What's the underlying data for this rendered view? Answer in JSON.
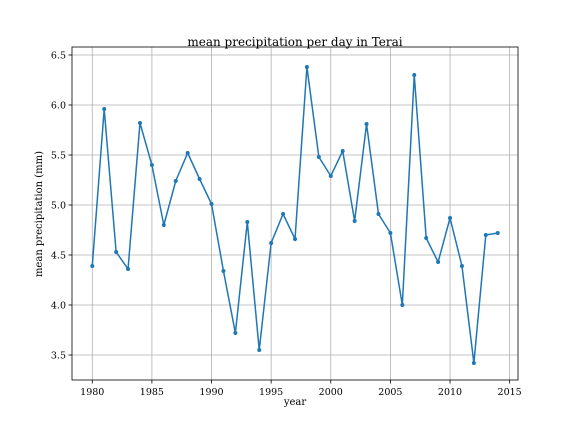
{
  "chart_data": {
    "type": "line",
    "title": "mean precipitation per day in Terai",
    "xlabel": "year",
    "ylabel": "mean precipitation (mm)",
    "x": [
      1980,
      1981,
      1982,
      1983,
      1984,
      1985,
      1986,
      1987,
      1988,
      1989,
      1990,
      1991,
      1992,
      1993,
      1994,
      1995,
      1996,
      1997,
      1998,
      1999,
      2000,
      2001,
      2002,
      2003,
      2004,
      2005,
      2006,
      2007,
      2008,
      2009,
      2010,
      2011,
      2012,
      2013,
      2014
    ],
    "series": [
      {
        "name": "mean precipitation",
        "color": "#1f77b4",
        "values": [
          4.39,
          5.96,
          4.53,
          4.36,
          5.82,
          5.4,
          4.8,
          5.24,
          5.52,
          5.26,
          5.01,
          4.34,
          3.72,
          4.83,
          3.55,
          4.62,
          4.91,
          4.66,
          6.38,
          5.48,
          5.29,
          5.54,
          4.84,
          5.81,
          4.91,
          4.72,
          4.0,
          6.3,
          4.67,
          4.43,
          4.87,
          4.39,
          3.42,
          4.7,
          4.72
        ]
      }
    ],
    "xlim": [
      1978.3,
      2015.7
    ],
    "ylim": [
      3.25,
      6.58
    ],
    "xticks": [
      1980,
      1985,
      1990,
      1995,
      2000,
      2005,
      2010,
      2015
    ],
    "yticks": [
      3.5,
      {
        "value": 4,
        "label": "4.0"
      },
      4.5,
      {
        "value": 5,
        "label": "5.0"
      },
      5.5,
      {
        "value": 6,
        "label": "6.0"
      },
      6.5
    ],
    "grid": true
  }
}
